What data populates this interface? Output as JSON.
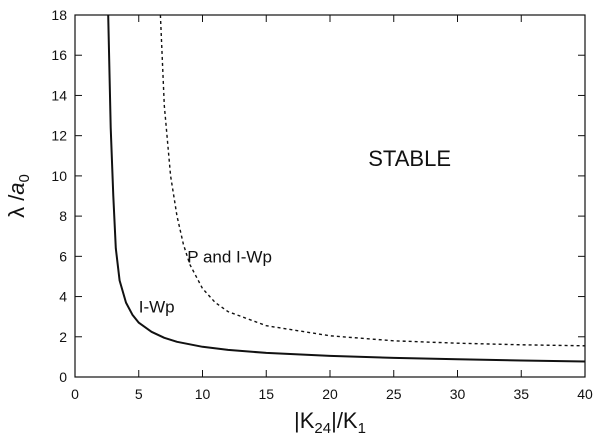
{
  "chart_data": {
    "type": "line",
    "xlabel": "|K24|/K1",
    "ylabel": "λ /a0",
    "xlim": [
      0,
      40
    ],
    "ylim": [
      0,
      18
    ],
    "xticks": [
      0,
      5,
      10,
      15,
      20,
      25,
      30,
      35,
      40
    ],
    "yticks": [
      0,
      2,
      4,
      6,
      8,
      10,
      12,
      14,
      16,
      18
    ],
    "grid": false,
    "legend": "none",
    "series": [
      {
        "style": "solid",
        "x": [
          2.6,
          2.8,
          3.0,
          3.2,
          3.5,
          4.0,
          4.5,
          5.0,
          6.0,
          7.0,
          8.0,
          10.0,
          12.0,
          15.0,
          20.0,
          25.0,
          30.0,
          35.0,
          40.0
        ],
        "y": [
          18.0,
          12.4,
          9.0,
          6.4,
          4.8,
          3.7,
          3.1,
          2.7,
          2.25,
          1.95,
          1.75,
          1.5,
          1.35,
          1.2,
          1.05,
          0.95,
          0.88,
          0.82,
          0.77
        ]
      },
      {
        "style": "dashed",
        "x": [
          6.7,
          7.0,
          7.5,
          8.0,
          8.5,
          9.0,
          10.0,
          11.0,
          12.0,
          15.0,
          20.0,
          25.0,
          30.0,
          35.0,
          40.0
        ],
        "y": [
          18.0,
          13.5,
          10.0,
          8.0,
          6.6,
          5.6,
          4.4,
          3.7,
          3.25,
          2.55,
          2.05,
          1.8,
          1.68,
          1.6,
          1.55
        ]
      }
    ],
    "annotations": [
      {
        "text": "STABLE",
        "x": 23.0,
        "y": 10.5,
        "size": "large"
      },
      {
        "text": "P and I-Wp",
        "x": 8.8,
        "y": 5.7,
        "size": "normal"
      },
      {
        "text": "I-Wp",
        "x": 5.0,
        "y": 3.2,
        "size": "normal"
      }
    ]
  }
}
